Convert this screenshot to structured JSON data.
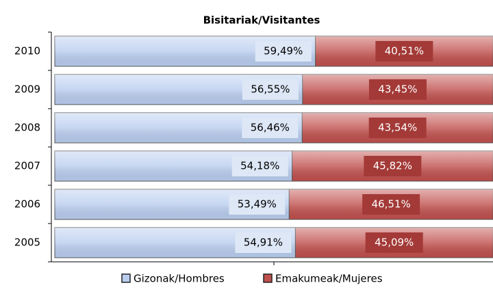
{
  "chart_data": {
    "type": "stacked-bar-horizontal",
    "title": "Bisitariak/Visitantes",
    "categories": [
      "2010",
      "2009",
      "2008",
      "2007",
      "2006",
      "2005"
    ],
    "series": [
      {
        "name": "Gizonak/Hombres",
        "color": "#b9cdef",
        "values": [
          59.49,
          56.55,
          56.46,
          54.18,
          53.49,
          54.91
        ],
        "value_labels": [
          "59,49%",
          "56,55%",
          "56,46%",
          "54,18%",
          "53,49%",
          "54,91%"
        ]
      },
      {
        "name": "Emakumeak/Mujeres",
        "color": "#c0504d",
        "values": [
          40.51,
          43.45,
          43.54,
          45.82,
          46.51,
          45.09
        ],
        "value_labels": [
          "40,51%",
          "43,45%",
          "43,54%",
          "45,82%",
          "46,51%",
          "45,09%"
        ]
      }
    ],
    "xlim": [
      0,
      100
    ],
    "legend": "bottom"
  }
}
